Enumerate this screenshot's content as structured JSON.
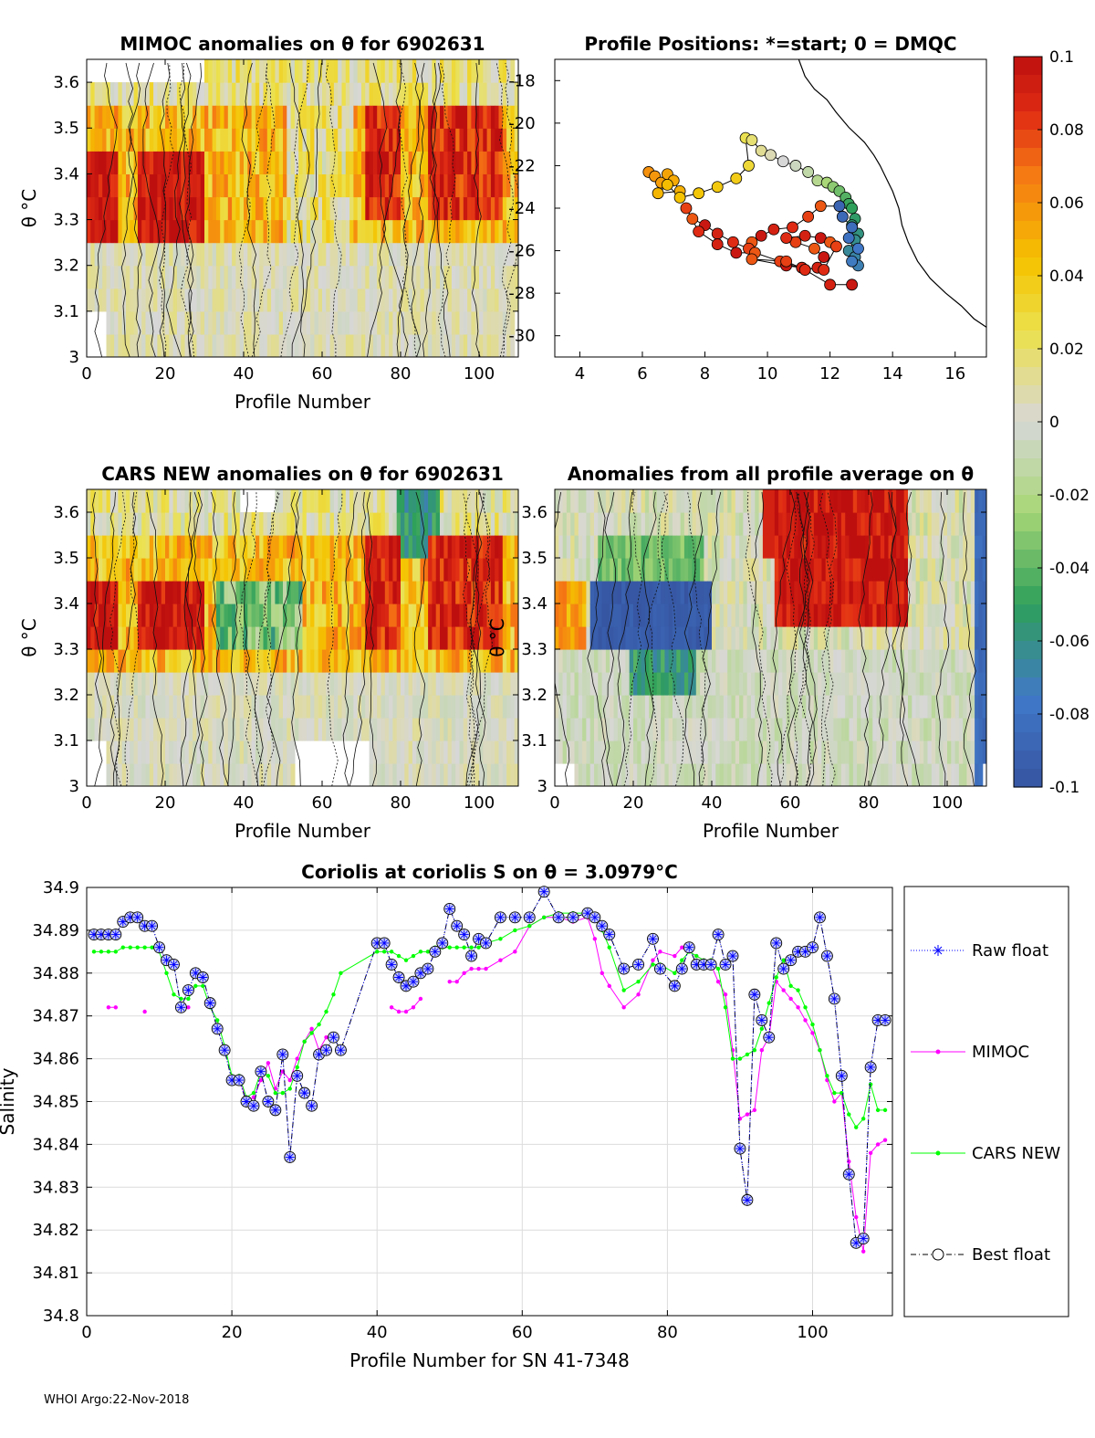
{
  "footer": "WHOI Argo:22-Nov-2018",
  "colorbar": {
    "ticks": [
      "0.1",
      "0.08",
      "0.06",
      "0.04",
      "0.02",
      "0",
      "-0.02",
      "-0.04",
      "-0.06",
      "-0.08",
      "-0.1"
    ],
    "range": [
      -0.1,
      0.1
    ]
  },
  "chart_data": [
    {
      "id": "mimoc",
      "type": "heatmap",
      "title": "MIMOC anomalies on θ  for 6902631",
      "xlabel": "Profile Number",
      "ylabel": "θ °C",
      "xlim": [
        0,
        110
      ],
      "ylim": [
        3.0,
        3.65
      ],
      "xticks": [
        "0",
        "20",
        "40",
        "60",
        "80",
        "100"
      ],
      "yticks": [
        "3",
        "3.1",
        "3.2",
        "3.3",
        "3.4",
        "3.5",
        "3.6"
      ]
    },
    {
      "id": "positions",
      "type": "scatter",
      "title": "Profile Positions: *=start; 0 = DMQC",
      "xlim": [
        3.2,
        17
      ],
      "ylim": [
        -31,
        -17
      ],
      "xticks": [
        "4",
        "6",
        "8",
        "10",
        "12",
        "14",
        "16"
      ],
      "yticks": [
        "-18",
        "-20",
        "-22",
        "-24",
        "-26",
        "-28",
        "-30"
      ],
      "x": [
        6.2,
        6.4,
        6.6,
        6.8,
        7.0,
        7.2,
        6.5,
        6.8,
        7.2,
        7.8,
        8.4,
        9.0,
        9.4,
        9.3,
        9.5,
        9.8,
        10.1,
        10.5,
        10.9,
        11.3,
        11.6,
        11.9,
        12.1,
        12.3,
        12.5,
        12.6,
        12.7,
        12.8,
        12.7,
        12.9,
        12.8,
        12.6,
        12.8,
        12.9,
        12.7,
        12.9,
        12.6,
        12.7,
        12.4,
        12.3,
        11.7,
        11.3,
        10.8,
        10.2,
        9.8,
        9.5,
        9.4,
        8.9,
        8.4,
        8.0,
        7.6,
        7.4,
        7.8,
        8.4,
        9.0,
        9.6,
        10.4,
        11.2,
        11.6,
        11.8,
        11.5,
        10.9,
        10.6,
        11.2,
        11.7,
        12.0,
        12.2,
        11.8,
        11.1,
        10.6,
        9.5,
        10.6,
        11.2,
        12.0,
        12.7
      ],
      "y": [
        -22.3,
        -22.5,
        -22.8,
        -22.4,
        -22.7,
        -23.2,
        -23.3,
        -22.9,
        -23.5,
        -23.3,
        -23.0,
        -22.6,
        -22.0,
        -20.7,
        -20.8,
        -21.3,
        -21.5,
        -21.8,
        -22.0,
        -22.3,
        -22.7,
        -22.8,
        -23.0,
        -23.2,
        -23.5,
        -23.8,
        -24.0,
        -24.5,
        -24.8,
        -25.2,
        -25.5,
        -26.0,
        -26.3,
        -26.7,
        -26.5,
        -25.9,
        -25.4,
        -24.9,
        -24.4,
        -23.9,
        -23.9,
        -24.4,
        -24.9,
        -25.0,
        -25.3,
        -25.6,
        -25.9,
        -25.6,
        -25.2,
        -24.8,
        -24.5,
        -24.0,
        -25.1,
        -25.7,
        -26.1,
        -26.1,
        -26.5,
        -26.9,
        -26.8,
        -26.3,
        -25.9,
        -25.6,
        -25.4,
        -25.3,
        -25.4,
        -25.6,
        -25.8,
        -26.9,
        -26.8,
        -26.7,
        -26.4,
        -26.5,
        -26.9,
        -27.6,
        -27.6
      ],
      "coastline": {
        "x": [
          11.0,
          11.2,
          11.5,
          11.9,
          12.2,
          12.6,
          13.1,
          13.4,
          13.6,
          13.8,
          14.0,
          14.2,
          14.3,
          14.5,
          14.8,
          15.2,
          15.7,
          16.2,
          16.6,
          17.0
        ],
        "y": [
          -17.0,
          -17.8,
          -18.4,
          -18.9,
          -19.5,
          -20.2,
          -20.9,
          -21.5,
          -22.0,
          -22.6,
          -23.2,
          -24.0,
          -24.8,
          -25.6,
          -26.5,
          -27.3,
          -28.0,
          -28.6,
          -29.2,
          -29.6
        ]
      }
    },
    {
      "id": "cars",
      "type": "heatmap",
      "title": "CARS NEW anomalies on θ for 6902631",
      "xlabel": "Profile Number",
      "ylabel": "θ °C",
      "xlim": [
        0,
        110
      ],
      "ylim": [
        3.0,
        3.65
      ],
      "xticks": [
        "0",
        "20",
        "40",
        "60",
        "80",
        "100"
      ],
      "yticks": [
        "3",
        "3.1",
        "3.2",
        "3.3",
        "3.4",
        "3.5",
        "3.6"
      ]
    },
    {
      "id": "allavg",
      "type": "heatmap",
      "title": "Anomalies from all profile average on θ",
      "xlabel": "Profile Number",
      "ylabel": "θ °C",
      "xlim": [
        0,
        110
      ],
      "ylim": [
        3.0,
        3.65
      ],
      "xticks": [
        "0",
        "20",
        "40",
        "60",
        "80",
        "100"
      ],
      "yticks": [
        "3",
        "3.1",
        "3.2",
        "3.3",
        "3.4",
        "3.5",
        "3.6"
      ]
    },
    {
      "id": "salinity",
      "type": "line",
      "title": "Coriolis at coriolis S on θ = 3.0979°C",
      "xlabel": "Profile Number for SN 41-7348",
      "ylabel": "Salinity",
      "xlim": [
        0,
        111
      ],
      "ylim": [
        34.8,
        34.9
      ],
      "xticks": [
        "0",
        "20",
        "40",
        "60",
        "80",
        "100"
      ],
      "yticks": [
        "34.9",
        "34.89",
        "34.88",
        "34.87",
        "34.86",
        "34.85",
        "34.84",
        "34.83",
        "34.82",
        "34.81",
        "34.8"
      ],
      "x": [
        1,
        2,
        3,
        4,
        5,
        6,
        7,
        8,
        9,
        10,
        11,
        12,
        13,
        14,
        15,
        16,
        17,
        18,
        19,
        20,
        21,
        22,
        23,
        24,
        25,
        26,
        27,
        28,
        29,
        30,
        31,
        32,
        33,
        34,
        35,
        40,
        41,
        42,
        43,
        44,
        45,
        46,
        47,
        48,
        49,
        50,
        51,
        52,
        53,
        54,
        55,
        57,
        59,
        61,
        63,
        65,
        67,
        69,
        70,
        71,
        72,
        74,
        76,
        78,
        79,
        81,
        82,
        83,
        84,
        85,
        86,
        87,
        88,
        89,
        90,
        91,
        92,
        93,
        94,
        95,
        96,
        97,
        98,
        99,
        100,
        101,
        102,
        103,
        104,
        105,
        106,
        107,
        108,
        109,
        110
      ],
      "series": [
        {
          "name": "Raw float",
          "color": "#0000ff",
          "values": [
            34.889,
            34.889,
            34.889,
            34.889,
            34.892,
            34.893,
            34.893,
            34.891,
            34.891,
            34.886,
            34.883,
            34.882,
            34.872,
            34.876,
            34.88,
            34.879,
            34.873,
            34.867,
            34.862,
            34.855,
            34.855,
            34.85,
            34.849,
            34.857,
            34.85,
            34.848,
            34.861,
            34.837,
            34.856,
            34.852,
            34.849,
            34.861,
            34.862,
            34.865,
            34.862,
            34.887,
            34.887,
            34.882,
            34.879,
            34.877,
            34.878,
            34.88,
            34.881,
            34.885,
            34.887,
            34.895,
            34.891,
            34.889,
            34.884,
            34.888,
            34.887,
            34.893,
            34.893,
            34.893,
            34.899,
            34.893,
            34.893,
            34.894,
            34.893,
            34.891,
            34.889,
            34.881,
            34.882,
            34.888,
            34.881,
            34.877,
            34.881,
            34.886,
            34.882,
            34.882,
            34.882,
            34.889,
            34.882,
            34.884,
            34.839,
            34.827,
            34.875,
            34.869,
            34.865,
            34.887,
            34.881,
            34.883,
            34.885,
            34.885,
            34.886,
            34.893,
            34.884,
            34.874,
            34.856,
            34.833,
            34.817,
            34.818,
            34.858,
            34.869,
            34.869
          ]
        },
        {
          "name": "MIMOC",
          "color": "#ff00ff",
          "values": [
            null,
            null,
            34.872,
            34.872,
            null,
            null,
            null,
            34.871,
            null,
            null,
            null,
            null,
            34.872,
            34.872,
            null,
            null,
            null,
            null,
            null,
            null,
            34.856,
            34.85,
            34.851,
            34.855,
            34.859,
            34.853,
            34.857,
            34.855,
            34.86,
            34.864,
            34.867,
            34.862,
            34.865,
            null,
            null,
            null,
            null,
            34.872,
            34.871,
            34.871,
            34.872,
            34.874,
            null,
            null,
            null,
            34.878,
            34.878,
            34.88,
            34.881,
            34.881,
            34.881,
            34.883,
            34.885,
            34.891,
            34.893,
            34.893,
            34.892,
            34.893,
            34.888,
            34.88,
            34.877,
            34.872,
            34.875,
            34.883,
            34.885,
            34.884,
            34.886,
            34.885,
            34.884,
            34.883,
            34.882,
            34.878,
            34.875,
            34.862,
            34.846,
            34.847,
            34.848,
            34.862,
            34.865,
            34.878,
            34.876,
            34.874,
            34.872,
            34.869,
            34.866,
            34.862,
            34.855,
            34.85,
            34.852,
            34.836,
            34.823,
            34.815,
            34.838,
            34.84,
            34.841
          ]
        },
        {
          "name": "CARS NEW",
          "color": "#00ff00",
          "values": [
            34.885,
            34.885,
            34.885,
            34.885,
            34.886,
            34.886,
            34.886,
            34.886,
            34.886,
            34.885,
            34.88,
            34.875,
            34.874,
            34.874,
            34.877,
            34.877,
            34.872,
            34.869,
            34.863,
            34.856,
            34.856,
            34.851,
            34.852,
            34.857,
            34.856,
            34.852,
            34.852,
            34.853,
            34.858,
            34.864,
            34.866,
            34.868,
            34.871,
            34.875,
            34.88,
            34.885,
            34.885,
            34.885,
            34.884,
            34.883,
            34.884,
            34.885,
            34.885,
            34.886,
            34.886,
            34.886,
            34.886,
            34.886,
            34.886,
            34.886,
            34.887,
            34.888,
            34.89,
            34.891,
            34.893,
            34.894,
            34.894,
            34.894,
            34.893,
            34.89,
            34.886,
            34.876,
            34.878,
            34.882,
            34.882,
            34.88,
            34.883,
            34.885,
            34.884,
            34.883,
            34.883,
            34.881,
            34.872,
            34.86,
            34.86,
            34.861,
            34.862,
            34.867,
            34.873,
            34.879,
            34.883,
            34.877,
            34.876,
            34.872,
            34.868,
            34.862,
            34.856,
            34.852,
            34.852,
            34.847,
            34.844,
            34.846,
            34.854,
            34.848,
            34.848
          ]
        },
        {
          "name": "Best float",
          "color": "#000000",
          "values": [
            34.889,
            34.889,
            34.889,
            34.889,
            34.892,
            34.893,
            34.893,
            34.891,
            34.891,
            34.886,
            34.883,
            34.882,
            34.872,
            34.876,
            34.88,
            34.879,
            34.873,
            34.867,
            34.862,
            34.855,
            34.855,
            34.85,
            34.849,
            34.857,
            34.85,
            34.848,
            34.861,
            34.837,
            34.856,
            34.852,
            34.849,
            34.861,
            34.862,
            34.865,
            34.862,
            34.887,
            34.887,
            34.882,
            34.879,
            34.877,
            34.878,
            34.88,
            34.881,
            34.885,
            34.887,
            34.895,
            34.891,
            34.889,
            34.884,
            34.888,
            34.887,
            34.893,
            34.893,
            34.893,
            34.899,
            34.893,
            34.893,
            34.894,
            34.893,
            34.891,
            34.889,
            34.881,
            34.882,
            34.888,
            34.881,
            34.877,
            34.881,
            34.886,
            34.882,
            34.882,
            34.882,
            34.889,
            34.882,
            34.884,
            34.839,
            34.827,
            34.875,
            34.869,
            34.865,
            34.887,
            34.881,
            34.883,
            34.885,
            34.885,
            34.886,
            34.893,
            34.884,
            34.874,
            34.856,
            34.833,
            34.817,
            34.818,
            34.858,
            34.869,
            34.869
          ]
        }
      ],
      "legend": [
        "Raw float",
        "MIMOC",
        "CARS NEW",
        "Best float"
      ]
    }
  ]
}
